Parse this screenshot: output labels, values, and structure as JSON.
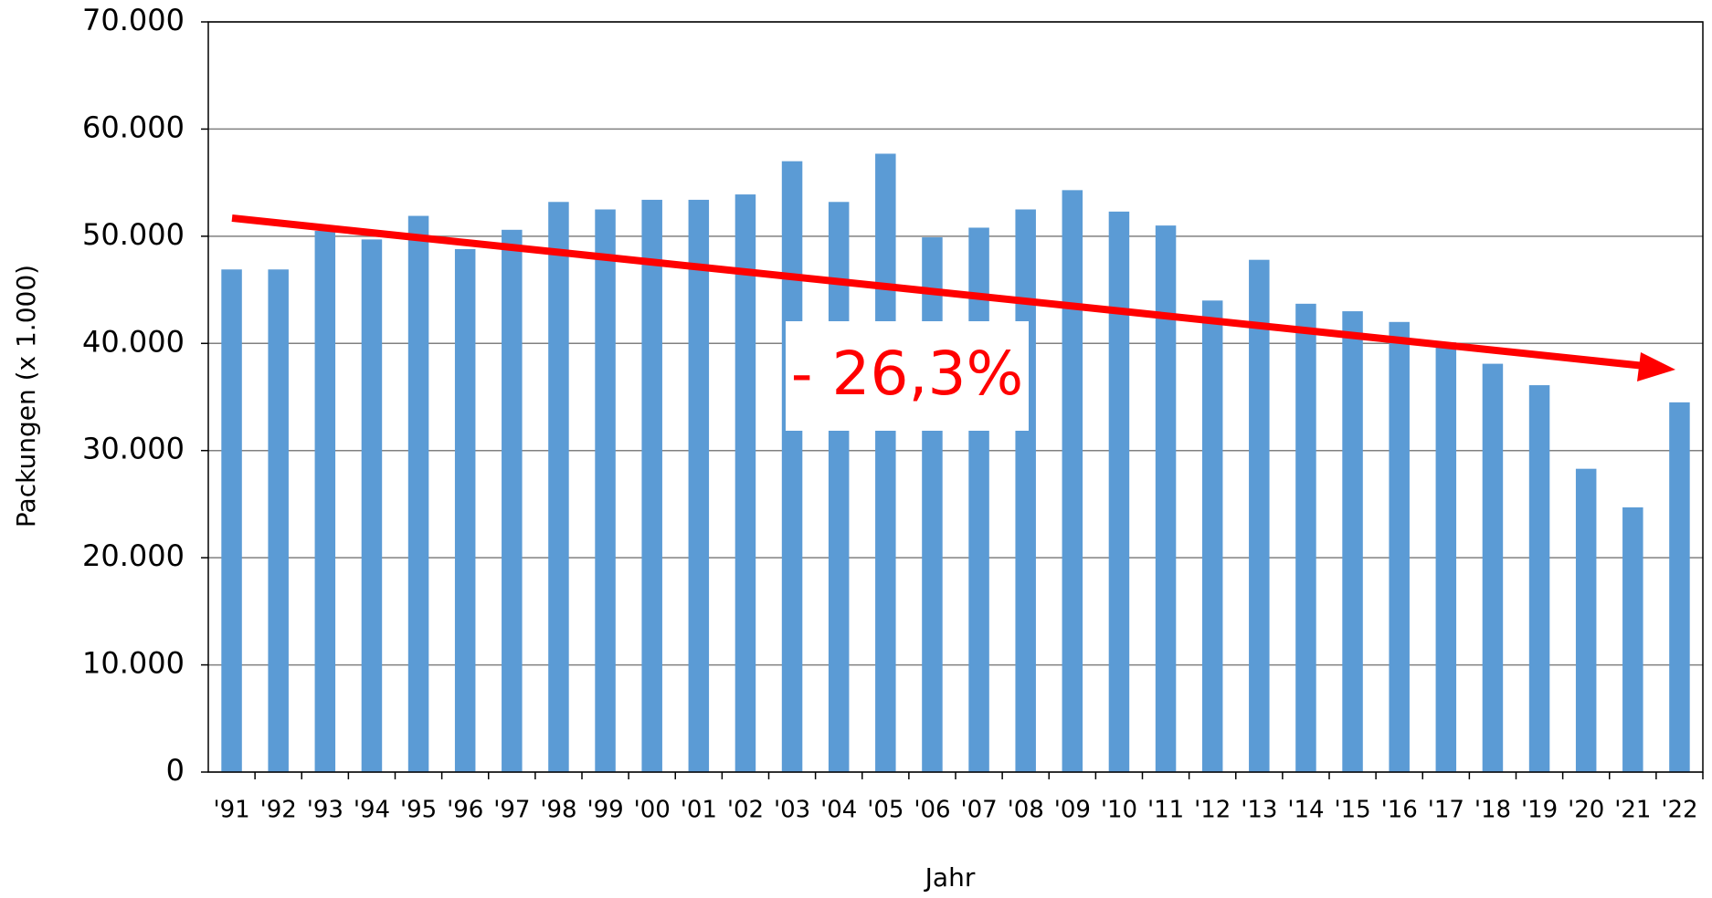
{
  "chart_data": {
    "type": "bar",
    "x_label": "Jahr",
    "y_label": "Packungen (x 1.000)",
    "annotation": "- 26,3%",
    "categories": [
      "'91",
      "'92",
      "'93",
      "'94",
      "'95",
      "'96",
      "'97",
      "'98",
      "'99",
      "'00",
      "'01",
      "'02",
      "'03",
      "'04",
      "'05",
      "'06",
      "'07",
      "'08",
      "'09",
      "'10",
      "'11",
      "'12",
      "'13",
      "'14",
      "'15",
      "'16",
      "'17",
      "'18",
      "'19",
      "'20",
      "'21",
      "'22"
    ],
    "values": [
      46900,
      46900,
      50500,
      49700,
      51900,
      48800,
      50600,
      53200,
      52500,
      53400,
      53400,
      53900,
      57000,
      53200,
      57700,
      49900,
      50800,
      52500,
      54300,
      52300,
      51000,
      44000,
      47800,
      43700,
      43000,
      42000,
      40100,
      38100,
      36100,
      28300,
      24700,
      34500
    ],
    "color": "#5b9bd5",
    "ylim": [
      0,
      70000
    ],
    "yticks": [
      0,
      {
        "value": 10000,
        "label": "10.000"
      },
      {
        "value": 20000,
        "label": "20.000"
      },
      {
        "value": 30000,
        "label": "30.000"
      },
      {
        "value": 40000,
        "label": "40.000"
      },
      {
        "value": 50000,
        "label": "50.000"
      },
      {
        "value": 60000,
        "label": "60.000"
      },
      {
        "value": 70000,
        "label": "70.000"
      }
    ],
    "grid": true
  }
}
